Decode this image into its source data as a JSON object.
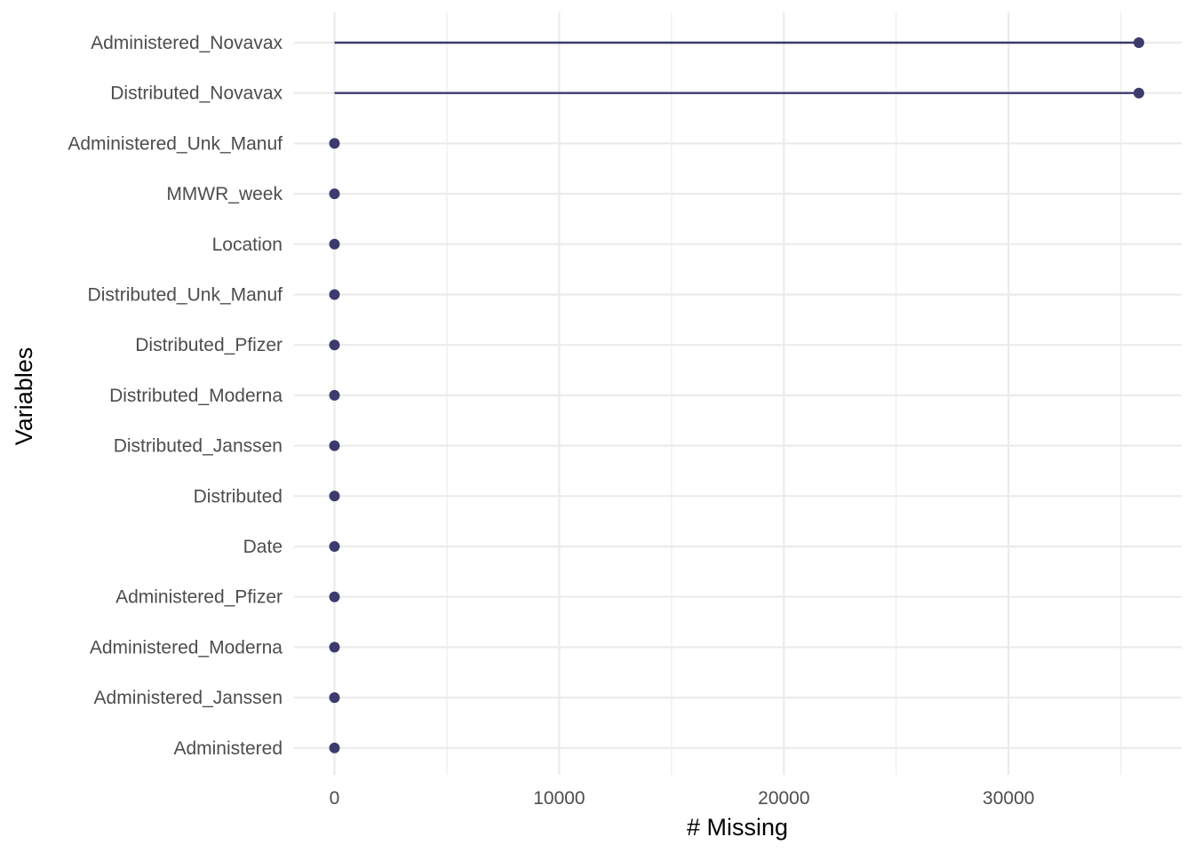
{
  "chart_data": {
    "type": "lollipop",
    "xlabel": "# Missing",
    "ylabel": "Variables",
    "xlim": [
      -1800,
      37700
    ],
    "x_ticks": [
      0,
      10000,
      20000,
      30000
    ],
    "x_tick_labels": [
      "0",
      "10000",
      "20000",
      "30000"
    ],
    "grid": true,
    "color": "#3b3b6e",
    "categories": [
      "Administered_Novavax",
      "Distributed_Novavax",
      "Administered_Unk_Manuf",
      "MMWR_week",
      "Location",
      "Distributed_Unk_Manuf",
      "Distributed_Pfizer",
      "Distributed_Moderna",
      "Distributed_Janssen",
      "Distributed",
      "Date",
      "Administered_Pfizer",
      "Administered_Moderna",
      "Administered_Janssen",
      "Administered"
    ],
    "values": [
      35800,
      35800,
      0,
      0,
      0,
      0,
      0,
      0,
      0,
      0,
      0,
      0,
      0,
      0,
      0
    ]
  }
}
